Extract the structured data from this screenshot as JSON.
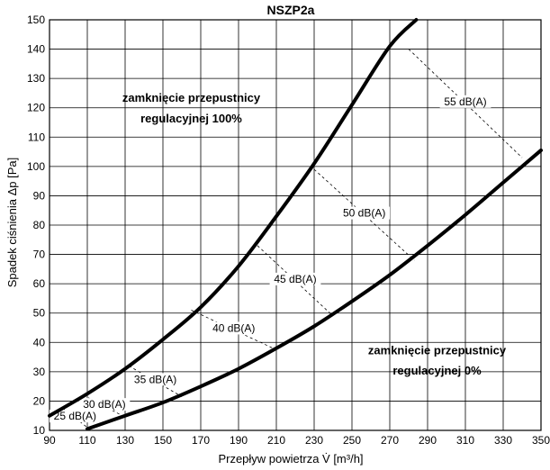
{
  "chart_data": {
    "type": "line",
    "title": "NSZP2a",
    "xlabel": "Przepływ powietrza V̇ [m³/h]",
    "ylabel": "Spadek ciśnienia Δp [Pa]",
    "xlim": [
      90,
      350
    ],
    "ylim": [
      10,
      150
    ],
    "grid": true,
    "x_ticks": [
      90,
      110,
      130,
      150,
      170,
      190,
      210,
      230,
      250,
      270,
      290,
      310,
      330,
      350
    ],
    "y_ticks": [
      10,
      20,
      30,
      40,
      50,
      60,
      70,
      80,
      90,
      100,
      110,
      120,
      130,
      140,
      150
    ],
    "series": [
      {
        "name": "zamknięcie przepustnicy regulacyjnej 100%",
        "x": [
          90,
          110,
          130,
          150,
          170,
          190,
          210,
          230,
          250,
          270,
          284
        ],
        "y": [
          15,
          22.5,
          31,
          41,
          52,
          66,
          83,
          101,
          121,
          141,
          150
        ]
      },
      {
        "name": "zamknięcie przepustnicy regulacyjnej 0%",
        "x": [
          110,
          130,
          150,
          170,
          190,
          210,
          230,
          250,
          270,
          290,
          310,
          330,
          350
        ],
        "y": [
          10.5,
          15,
          19.5,
          25,
          31,
          38,
          45.5,
          54,
          63,
          73,
          83.5,
          94.5,
          105.5
        ]
      }
    ],
    "isolines": [
      {
        "label": "25 dB(A)",
        "from": [
          97,
          17.5
        ],
        "to": [
          110,
          11
        ]
      },
      {
        "label": "30 dB(A)",
        "from": [
          108,
          22
        ],
        "to": [
          130,
          14.5
        ]
      },
      {
        "label": "35 dB(A)",
        "from": [
          132,
          32
        ],
        "to": [
          160,
          21.5
        ]
      },
      {
        "label": "40 dB(A)",
        "from": [
          165,
          51
        ],
        "to": [
          210,
          37.5
        ]
      },
      {
        "label": "45 dB(A)",
        "from": [
          200,
          73
        ],
        "to": [
          240,
          49
        ]
      },
      {
        "label": "50 dB(A)",
        "from": [
          230,
          99
        ],
        "to": [
          283,
          68
        ]
      },
      {
        "label": "55 dB(A)",
        "from": [
          280,
          140
        ],
        "to": [
          340,
          103
        ]
      }
    ],
    "annotations": [
      {
        "text": "zamknięcie przepustnicy",
        "x": 165,
        "y": 122
      },
      {
        "text": "regulacyjnej 100%",
        "x": 165,
        "y": 115
      },
      {
        "text": "zamknięcie przepustnicy",
        "x": 295,
        "y": 36
      },
      {
        "text": "regulacyjnej 0%",
        "x": 295,
        "y": 29
      }
    ]
  }
}
